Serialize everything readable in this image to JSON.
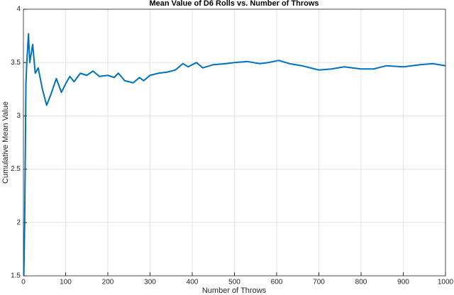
{
  "chart_data": {
    "type": "line",
    "title": "Mean Value of D6 Rolls vs. Number of Throws",
    "x_label": "Number of Throws",
    "y_label": "Cumulative Mean Value",
    "x": [
      1,
      3,
      6,
      8,
      12,
      15,
      22,
      28,
      35,
      45,
      55,
      65,
      78,
      90,
      100,
      110,
      120,
      135,
      150,
      165,
      180,
      200,
      215,
      225,
      240,
      260,
      275,
      285,
      300,
      320,
      340,
      360,
      378,
      390,
      400,
      410,
      425,
      450,
      480,
      500,
      530,
      560,
      580,
      605,
      630,
      660,
      700,
      730,
      760,
      800,
      830,
      860,
      900,
      940,
      970,
      1000
    ],
    "series": [
      {
        "name": "Cumulative Mean",
        "color": "#0072bd",
        "values": [
          1.5,
          2,
          3.3,
          3.5,
          3.77,
          3.5,
          3.67,
          3.4,
          3.45,
          3.25,
          3.1,
          3.2,
          3.35,
          3.22,
          3.3,
          3.37,
          3.32,
          3.4,
          3.38,
          3.42,
          3.37,
          3.38,
          3.36,
          3.4,
          3.33,
          3.31,
          3.36,
          3.33,
          3.38,
          3.4,
          3.41,
          3.43,
          3.49,
          3.46,
          3.48,
          3.5,
          3.45,
          3.48,
          3.49,
          3.5,
          3.51,
          3.49,
          3.5,
          3.52,
          3.49,
          3.47,
          3.43,
          3.44,
          3.46,
          3.44,
          3.44,
          3.47,
          3.46,
          3.48,
          3.49,
          3.47
        ]
      }
    ],
    "xlim": [
      0,
      1000
    ],
    "xticks": [
      0,
      100,
      200,
      300,
      400,
      500,
      600,
      700,
      800,
      900,
      1000
    ],
    "ylim": [
      1.5,
      4
    ],
    "yticks": [
      1.5,
      2,
      2.5,
      3,
      3.5,
      4
    ],
    "grid": true
  }
}
